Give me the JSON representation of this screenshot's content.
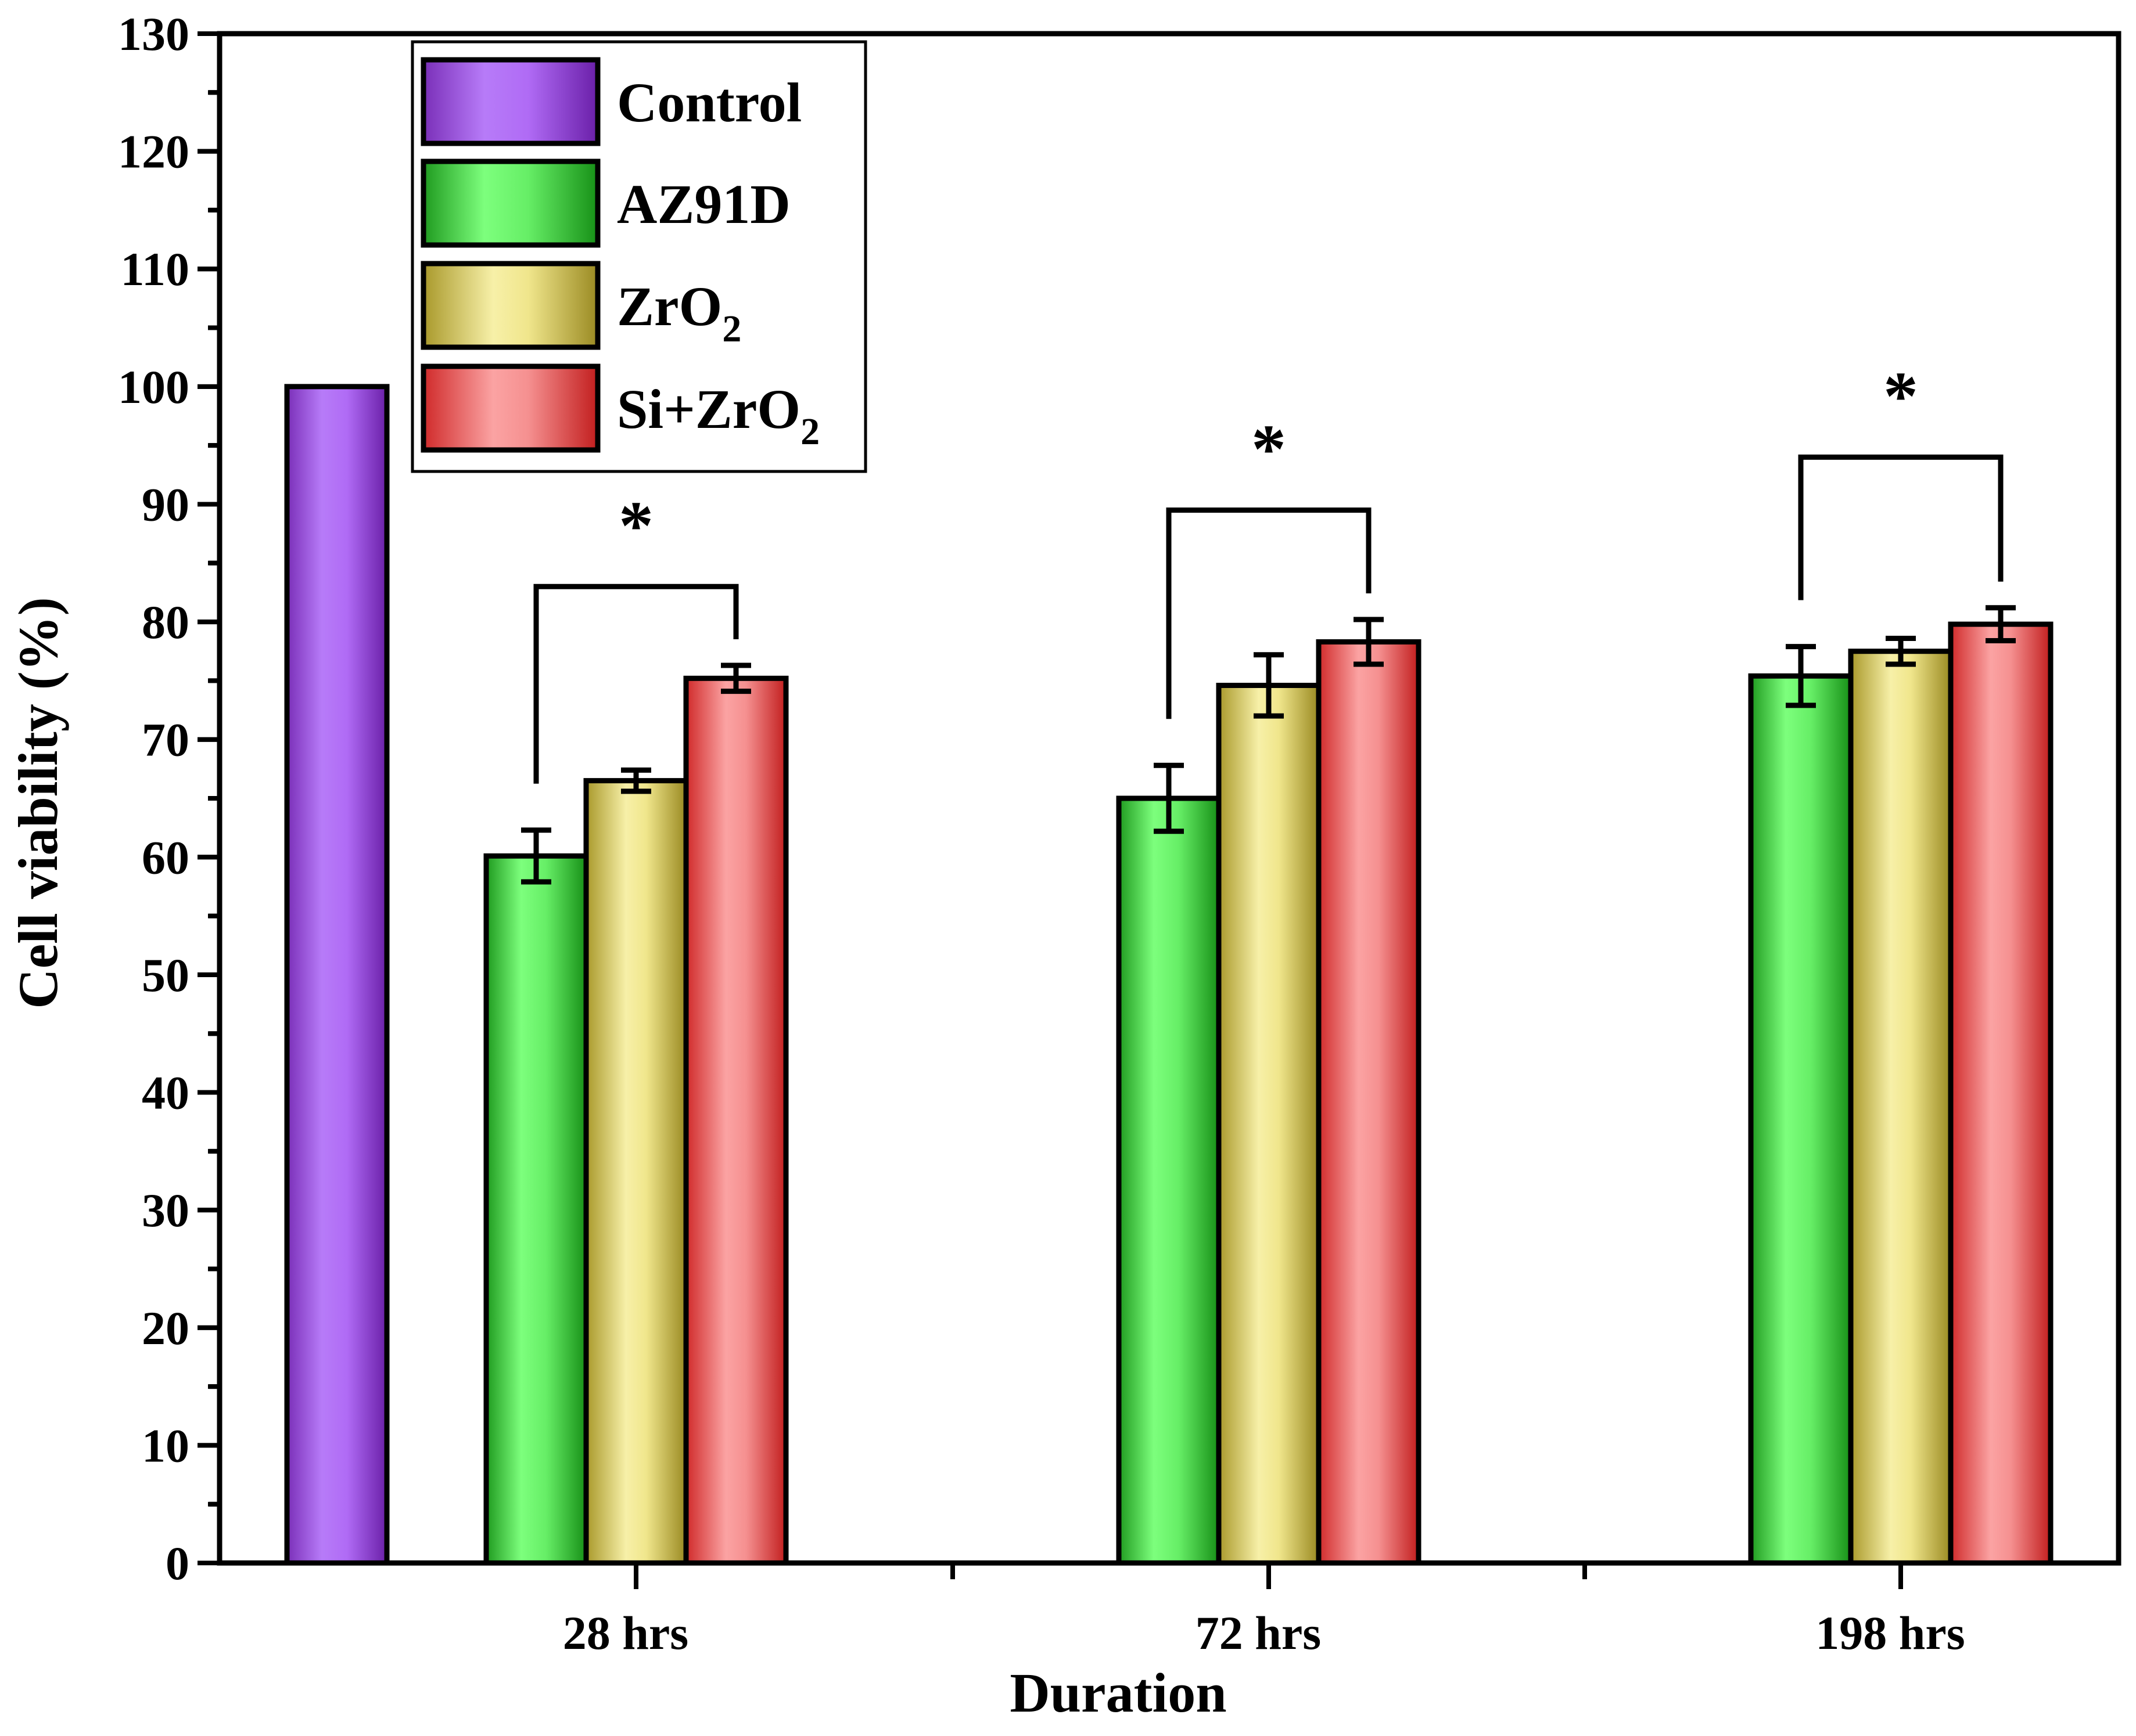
{
  "chart_data": {
    "type": "bar",
    "title": "",
    "xlabel": "Duration",
    "ylabel": "Cell viability (%)",
    "ylim": [
      0,
      130
    ],
    "yticks": [
      0,
      10,
      20,
      30,
      40,
      50,
      60,
      70,
      80,
      90,
      100,
      110,
      120,
      130
    ],
    "ytick_labels": [
      "0",
      "10",
      "20",
      "30",
      "40",
      "50",
      "60",
      "70",
      "80",
      "90",
      "100",
      "110",
      "120",
      "130"
    ],
    "categories": [
      "28 hrs",
      "72 hrs",
      "198 hrs"
    ],
    "control": {
      "name": "Control",
      "value": 100,
      "color": "#b06bf5"
    },
    "series": [
      {
        "name": "AZ91D",
        "name_base": "AZ91D",
        "name_sub": "",
        "name_tail": "",
        "values": [
          60.1,
          65.0,
          75.4
        ],
        "errors": [
          2.2,
          2.8,
          2.5
        ],
        "color": "#66ee66"
      },
      {
        "name": "ZrO2",
        "name_base": "ZrO",
        "name_sub": "2",
        "name_tail": "",
        "values": [
          66.5,
          74.6,
          77.5
        ],
        "errors": [
          0.9,
          2.6,
          1.1
        ],
        "color": "#f0e68c"
      },
      {
        "name": "Si+ZrO2",
        "name_base": "Si+ZrO",
        "name_sub": "2",
        "name_tail": "",
        "values": [
          75.2,
          78.3,
          79.8
        ],
        "errors": [
          1.1,
          1.9,
          1.4
        ],
        "color": "#f59090"
      }
    ],
    "significance": [
      {
        "category": "28 hrs",
        "between": [
          "AZ91D",
          "Si+ZrO2"
        ],
        "level": 83.0,
        "label": "*"
      },
      {
        "category": "72 hrs",
        "between": [
          "AZ91D",
          "Si+ZrO2"
        ],
        "level": 89.5,
        "label": "*"
      },
      {
        "category": "198 hrs",
        "between": [
          "AZ91D",
          "Si+ZrO2"
        ],
        "level": 94.0,
        "label": "*"
      }
    ],
    "legend_position": "top-left",
    "grid": false
  }
}
